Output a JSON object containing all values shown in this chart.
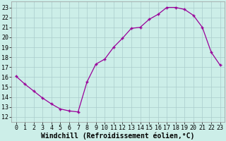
{
  "x": [
    0,
    1,
    2,
    3,
    4,
    5,
    6,
    7,
    8,
    9,
    10,
    11,
    12,
    13,
    14,
    15,
    16,
    17,
    18,
    19,
    20,
    21,
    22,
    23
  ],
  "y": [
    16.1,
    15.3,
    14.6,
    13.9,
    13.3,
    12.8,
    12.6,
    12.5,
    15.5,
    17.3,
    17.8,
    19.0,
    19.9,
    20.9,
    21.0,
    21.8,
    22.3,
    23.0,
    23.0,
    22.8,
    22.2,
    21.0,
    18.5,
    17.2
  ],
  "line_color": "#990099",
  "marker": "+",
  "xlabel": "Windchill (Refroidissement éolien,°C)",
  "xlabel_fontsize": 7,
  "xticks": [
    0,
    1,
    2,
    3,
    4,
    5,
    6,
    7,
    8,
    9,
    10,
    11,
    12,
    13,
    14,
    15,
    16,
    17,
    18,
    19,
    20,
    21,
    22,
    23
  ],
  "yticks": [
    12,
    13,
    14,
    15,
    16,
    17,
    18,
    19,
    20,
    21,
    22,
    23
  ],
  "ylim": [
    11.5,
    23.6
  ],
  "xlim": [
    -0.5,
    23.5
  ],
  "background_color": "#cceee8",
  "grid_color": "#aacccc",
  "tick_fontsize": 6,
  "figsize": [
    3.2,
    2.0
  ],
  "dpi": 100
}
